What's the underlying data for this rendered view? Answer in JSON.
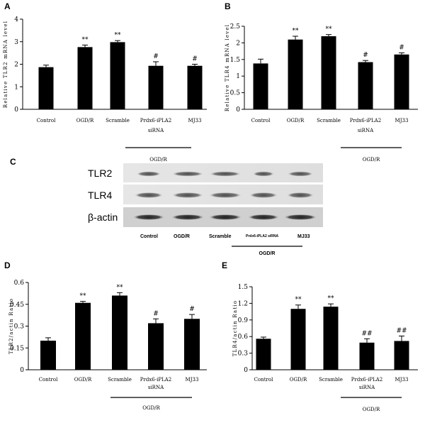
{
  "panel_letters": [
    "A",
    "B",
    "C",
    "D",
    "E"
  ],
  "blot": {
    "rows": [
      "TLR2",
      "TLR4",
      "β-actin"
    ],
    "lanes": [
      "Control",
      "OGD/R",
      "Scramble",
      "Prdx6-iPLA2 siRNA",
      "MJ33"
    ],
    "group_label": "OGD/R"
  },
  "chart_data": [
    {
      "type": "bar",
      "panel": "A",
      "categories": [
        "Control",
        "OGD/R",
        "Scramble",
        "Prdx6-iPLA2 siRNA",
        "MJ33"
      ],
      "values": [
        1.87,
        2.76,
        2.98,
        1.93,
        1.93
      ],
      "errors": [
        0.09,
        0.09,
        0.07,
        0.18,
        0.07
      ],
      "annotations": [
        "",
        "**",
        "**",
        "#",
        "#"
      ],
      "ylabel": "Relative TLR2 mRNA level",
      "ylim": [
        0,
        4
      ],
      "yticks": [
        "0",
        "1",
        "2",
        "3",
        "4"
      ],
      "ytick_values": [
        0,
        1,
        2,
        3,
        4
      ],
      "group_label": "OGD/R"
    },
    {
      "type": "bar",
      "panel": "B",
      "categories": [
        "Control",
        "OGD/R",
        "Scramble",
        "Prdx6-iPLA2 siRNA",
        "MJ33"
      ],
      "values": [
        1.38,
        2.1,
        2.2,
        1.42,
        1.65
      ],
      "errors": [
        0.13,
        0.1,
        0.05,
        0.05,
        0.05
      ],
      "annotations": [
        "",
        "**",
        "**",
        "#",
        "#"
      ],
      "ylabel": "Relative TLR4 mRNA level",
      "ylim": [
        0,
        2.5
      ],
      "yticks": [
        "0",
        "0.5",
        "1",
        "1.5",
        "2",
        "2.5"
      ],
      "ytick_values": [
        0,
        0.5,
        1,
        1.5,
        2,
        2.5
      ],
      "group_label": "OGD/R"
    },
    {
      "type": "bar",
      "panel": "D",
      "categories": [
        "Control",
        "OGD/R",
        "Scramble",
        "Prdx6-iPLA2 siRNA",
        "MJ33"
      ],
      "values": [
        0.2,
        0.46,
        0.51,
        0.32,
        0.35
      ],
      "errors": [
        0.02,
        0.01,
        0.02,
        0.03,
        0.03
      ],
      "annotations": [
        "",
        "**",
        "**",
        "#",
        "#"
      ],
      "ylabel": "TLR2/actin Ratio",
      "ylim": [
        0,
        0.6
      ],
      "yticks": [
        "0",
        "0.15",
        "0.3",
        "0.45",
        "0.6"
      ],
      "ytick_values": [
        0,
        0.15,
        0.3,
        0.45,
        0.6
      ],
      "group_label": "OGD/R"
    },
    {
      "type": "bar",
      "panel": "E",
      "categories": [
        "Control",
        "OGD/R",
        "Scramble",
        "Prdx6-iPLA2 siRNA",
        "MJ33"
      ],
      "values": [
        0.56,
        1.1,
        1.14,
        0.49,
        0.52
      ],
      "errors": [
        0.03,
        0.07,
        0.05,
        0.07,
        0.09
      ],
      "annotations": [
        "",
        "**",
        "**",
        "##",
        "##"
      ],
      "ylabel": "TLR4/actin Ratio",
      "ylim": [
        0,
        1.5
      ],
      "yticks": [
        "0",
        "0.3",
        "0.6",
        "0.9",
        "1.2",
        "1.5"
      ],
      "ytick_values": [
        0,
        0.3,
        0.6,
        0.9,
        1.2,
        1.5
      ],
      "group_label": "OGD/R"
    }
  ]
}
